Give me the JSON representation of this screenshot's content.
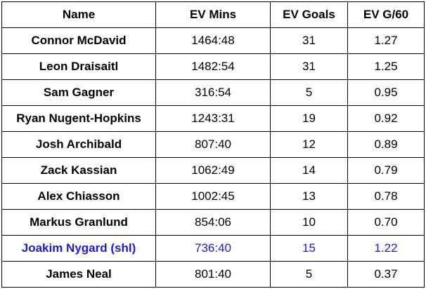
{
  "table": {
    "headers": [
      "Name",
      "EV Mins",
      "EV Goals",
      "EV G/60"
    ],
    "highlight_color": "#1a1adf",
    "rows": [
      {
        "name": "Connor McDavid",
        "ev_mins": "1464:48",
        "ev_goals": "31",
        "ev_g60": "1.27",
        "highlight": false
      },
      {
        "name": "Leon Draisaitl",
        "ev_mins": "1482:54",
        "ev_goals": "31",
        "ev_g60": "1.25",
        "highlight": false
      },
      {
        "name": "Sam Gagner",
        "ev_mins": "316:54",
        "ev_goals": "5",
        "ev_g60": "0.95",
        "highlight": false
      },
      {
        "name": "Ryan Nugent-Hopkins",
        "ev_mins": "1243:31",
        "ev_goals": "19",
        "ev_g60": "0.92",
        "highlight": false
      },
      {
        "name": "Josh Archibald",
        "ev_mins": "807:40",
        "ev_goals": "12",
        "ev_g60": "0.89",
        "highlight": false
      },
      {
        "name": "Zack Kassian",
        "ev_mins": "1062:49",
        "ev_goals": "14",
        "ev_g60": "0.79",
        "highlight": false
      },
      {
        "name": "Alex Chiasson",
        "ev_mins": "1002:45",
        "ev_goals": "13",
        "ev_g60": "0.78",
        "highlight": false
      },
      {
        "name": "Markus Granlund",
        "ev_mins": "854:06",
        "ev_goals": "10",
        "ev_g60": "0.70",
        "highlight": false
      },
      {
        "name": "Joakim Nygard (shl)",
        "ev_mins": "736:40",
        "ev_goals": "15",
        "ev_g60": "1.22",
        "highlight": true
      },
      {
        "name": "James Neal",
        "ev_mins": "801:40",
        "ev_goals": "5",
        "ev_g60": "0.37",
        "highlight": false
      }
    ]
  }
}
